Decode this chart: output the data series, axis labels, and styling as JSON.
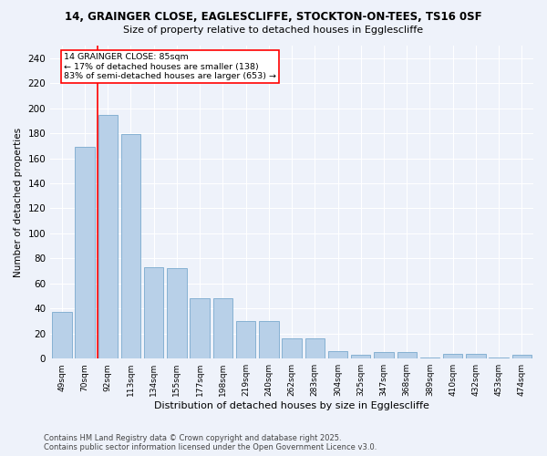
{
  "title1": "14, GRAINGER CLOSE, EAGLESCLIFFE, STOCKTON-ON-TEES, TS16 0SF",
  "title2": "Size of property relative to detached houses in Egglescliffe",
  "xlabel": "Distribution of detached houses by size in Egglescliffe",
  "ylabel": "Number of detached properties",
  "bar_color": "#b8d0e8",
  "bar_edge_color": "#7aaace",
  "categories": [
    "49sqm",
    "70sqm",
    "92sqm",
    "113sqm",
    "134sqm",
    "155sqm",
    "177sqm",
    "198sqm",
    "219sqm",
    "240sqm",
    "262sqm",
    "283sqm",
    "304sqm",
    "325sqm",
    "347sqm",
    "368sqm",
    "389sqm",
    "410sqm",
    "432sqm",
    "453sqm",
    "474sqm"
  ],
  "values": [
    37,
    169,
    195,
    179,
    73,
    72,
    48,
    48,
    30,
    30,
    16,
    16,
    6,
    3,
    5,
    5,
    1,
    4,
    4,
    1,
    3
  ],
  "ylim": [
    0,
    250
  ],
  "yticks": [
    0,
    20,
    40,
    60,
    80,
    100,
    120,
    140,
    160,
    180,
    200,
    220,
    240
  ],
  "property_label": "14 GRAINGER CLOSE: 85sqm",
  "annotation_line1": "← 17% of detached houses are smaller (138)",
  "annotation_line2": "83% of semi-detached houses are larger (653) →",
  "red_line_x": 1.55,
  "footer1": "Contains HM Land Registry data © Crown copyright and database right 2025.",
  "footer2": "Contains public sector information licensed under the Open Government Licence v3.0.",
  "background_color": "#eef2fa",
  "grid_color": "#ffffff"
}
